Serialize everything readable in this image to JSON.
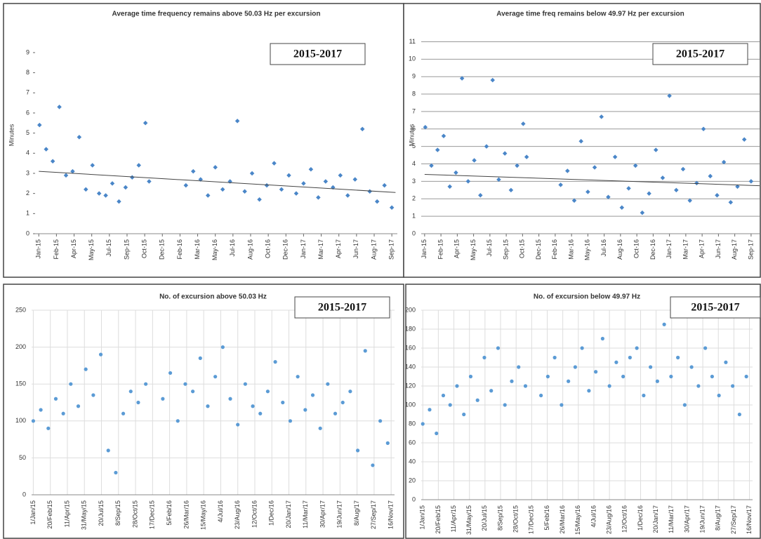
{
  "chart_data": [
    {
      "type": "scatter",
      "title": "Average time frequency remains above 50.03 Hz per excursion",
      "ylabel": "Minutes",
      "annotation": "2015-2017",
      "color": "#4a86c8",
      "marker": "diamond",
      "grid": "none",
      "x": [
        2,
        20,
        38,
        56,
        74,
        92,
        110,
        128,
        146,
        164,
        182,
        200,
        218,
        236,
        254,
        272,
        290,
        300,
        400,
        420,
        440,
        460,
        480,
        500,
        520,
        540,
        560,
        580,
        600,
        620,
        640,
        660,
        680,
        700,
        720,
        740,
        760,
        780,
        800,
        820,
        840,
        860,
        880,
        900,
        920,
        940,
        960
      ],
      "values": [
        5.4,
        4.2,
        3.6,
        6.3,
        2.9,
        3.1,
        4.8,
        2.2,
        3.4,
        2.0,
        1.9,
        2.5,
        1.6,
        2.3,
        2.8,
        3.4,
        5.5,
        2.6,
        2.4,
        3.1,
        2.7,
        1.9,
        3.3,
        2.2,
        2.6,
        5.6,
        2.1,
        3.0,
        1.7,
        2.4,
        3.5,
        2.2,
        2.9,
        2.0,
        2.5,
        3.2,
        1.8,
        2.6,
        2.3,
        2.9,
        1.9,
        2.7,
        5.2,
        2.1,
        1.6,
        2.4,
        1.3
      ],
      "trendline": {
        "x": [
          0,
          970
        ],
        "values": [
          3.1,
          2.05
        ]
      },
      "xlim": [
        -10,
        975
      ],
      "ylim": [
        0,
        9.8
      ],
      "yticks": [
        0,
        1,
        2,
        3,
        4,
        5,
        6,
        7,
        8,
        9
      ],
      "xticks": [
        {
          "value": 0,
          "label": "Jan-15"
        },
        {
          "value": 48,
          "label": "Feb-15"
        },
        {
          "value": 96,
          "label": "Apr-15"
        },
        {
          "value": 144,
          "label": "May-15"
        },
        {
          "value": 192,
          "label": "Jul-15"
        },
        {
          "value": 240,
          "label": "Sep-15"
        },
        {
          "value": 288,
          "label": "Oct-15"
        },
        {
          "value": 336,
          "label": "Dec-15"
        },
        {
          "value": 384,
          "label": "Feb-16"
        },
        {
          "value": 432,
          "label": "Mar-16"
        },
        {
          "value": 480,
          "label": "May-16"
        },
        {
          "value": 528,
          "label": "Jul-16"
        },
        {
          "value": 576,
          "label": "Aug-16"
        },
        {
          "value": 624,
          "label": "Oct-16"
        },
        {
          "value": 672,
          "label": "Dec-16"
        },
        {
          "value": 720,
          "label": "Jan-17"
        },
        {
          "value": 768,
          "label": "Mar-17"
        },
        {
          "value": 816,
          "label": "Apr-17"
        },
        {
          "value": 864,
          "label": "Jun-17"
        },
        {
          "value": 912,
          "label": "Aug-17"
        },
        {
          "value": 960,
          "label": "Sep-17"
        }
      ]
    },
    {
      "type": "scatter",
      "title": "Average time freq remains below 49.97 Hz per excursion",
      "ylabel": "Minutes",
      "annotation": "2015-2017",
      "color": "#4a86c8",
      "marker": "diamond",
      "grid": "y",
      "x": [
        2,
        20,
        38,
        56,
        74,
        92,
        110,
        128,
        146,
        164,
        182,
        200,
        218,
        236,
        254,
        272,
        290,
        300,
        400,
        420,
        440,
        460,
        480,
        500,
        520,
        540,
        560,
        580,
        600,
        620,
        640,
        660,
        680,
        700,
        720,
        740,
        760,
        780,
        800,
        820,
        840,
        860,
        880,
        900,
        920,
        940,
        960
      ],
      "values": [
        6.1,
        3.9,
        4.8,
        5.6,
        2.7,
        3.5,
        8.9,
        3.0,
        4.2,
        2.2,
        5.0,
        8.8,
        3.1,
        4.6,
        2.5,
        3.9,
        6.3,
        4.4,
        2.8,
        3.6,
        1.9,
        5.3,
        2.4,
        3.8,
        6.7,
        2.1,
        4.4,
        1.5,
        2.6,
        3.9,
        1.2,
        2.3,
        4.8,
        3.2,
        7.9,
        2.5,
        3.7,
        1.9,
        2.9,
        6.0,
        3.3,
        2.2,
        4.1,
        1.8,
        2.7,
        5.4,
        3.0
      ],
      "trendline": {
        "x": [
          0,
          985
        ],
        "values": [
          3.4,
          2.75
        ]
      },
      "xlim": [
        -10,
        985
      ],
      "ylim": [
        0,
        11.3
      ],
      "yticks": [
        0,
        1,
        2,
        3,
        4,
        5,
        6,
        7,
        8,
        9,
        10,
        11
      ],
      "xticks": [
        {
          "value": 0,
          "label": "Jan-15"
        },
        {
          "value": 48,
          "label": "Feb-15"
        },
        {
          "value": 96,
          "label": "Apr-15"
        },
        {
          "value": 144,
          "label": "May-15"
        },
        {
          "value": 192,
          "label": "Jul-15"
        },
        {
          "value": 240,
          "label": "Sep-15"
        },
        {
          "value": 288,
          "label": "Oct-15"
        },
        {
          "value": 336,
          "label": "Dec-15"
        },
        {
          "value": 384,
          "label": "Feb-16"
        },
        {
          "value": 432,
          "label": "Mar-16"
        },
        {
          "value": 480,
          "label": "May-16"
        },
        {
          "value": 528,
          "label": "Jul-16"
        },
        {
          "value": 576,
          "label": "Aug-16"
        },
        {
          "value": 624,
          "label": "Oct-16"
        },
        {
          "value": 672,
          "label": "Dec-16"
        },
        {
          "value": 720,
          "label": "Jan-17"
        },
        {
          "value": 768,
          "label": "Mar-17"
        },
        {
          "value": 816,
          "label": "Apr-17"
        },
        {
          "value": 864,
          "label": "Jun-17"
        },
        {
          "value": 912,
          "label": "Aug-17"
        },
        {
          "value": 960,
          "label": "Sep-17"
        }
      ]
    },
    {
      "type": "scatter",
      "title": "No. of excursion above 50.03 Hz",
      "annotation": "2015-2017",
      "color": "#5b9bd5",
      "marker": "circle",
      "grid": "both",
      "x": [
        0,
        22,
        44,
        66,
        88,
        110,
        132,
        154,
        176,
        198,
        220,
        242,
        264,
        286,
        308,
        330,
        380,
        402,
        424,
        446,
        468,
        490,
        512,
        534,
        556,
        578,
        600,
        622,
        644,
        666,
        688,
        710,
        732,
        754,
        776,
        798,
        820,
        842,
        864,
        886,
        908,
        930,
        952,
        974,
        996,
        1018,
        1040
      ],
      "values": [
        100,
        115,
        90,
        130,
        110,
        150,
        120,
        170,
        135,
        190,
        60,
        30,
        110,
        140,
        125,
        150,
        130,
        165,
        100,
        150,
        140,
        185,
        120,
        160,
        200,
        130,
        95,
        150,
        120,
        110,
        140,
        180,
        125,
        100,
        160,
        115,
        135,
        90,
        150,
        110,
        125,
        140,
        60,
        195,
        40,
        100,
        70
      ],
      "xlim": [
        -5,
        1060
      ],
      "ylim": [
        0,
        250
      ],
      "yticks": [
        0,
        50,
        100,
        150,
        200,
        250
      ],
      "xticks": [
        {
          "value": 0,
          "label": "1/Jan/15"
        },
        {
          "value": 50,
          "label": "20/Feb/15"
        },
        {
          "value": 100,
          "label": "11/Apr/15"
        },
        {
          "value": 150,
          "label": "31/May/15"
        },
        {
          "value": 200,
          "label": "20/Jul/15"
        },
        {
          "value": 250,
          "label": "8/Sep/15"
        },
        {
          "value": 300,
          "label": "28/Oct/15"
        },
        {
          "value": 350,
          "label": "17/Dec/15"
        },
        {
          "value": 400,
          "label": "5/Feb/16"
        },
        {
          "value": 450,
          "label": "26/Mar/16"
        },
        {
          "value": 500,
          "label": "15/May/16"
        },
        {
          "value": 550,
          "label": "4/Jul/16"
        },
        {
          "value": 600,
          "label": "23/Aug/16"
        },
        {
          "value": 650,
          "label": "12/Oct/16"
        },
        {
          "value": 700,
          "label": "1/Dec/16"
        },
        {
          "value": 750,
          "label": "20/Jan/17"
        },
        {
          "value": 800,
          "label": "11/Mar/17"
        },
        {
          "value": 850,
          "label": "30/Apr/17"
        },
        {
          "value": 900,
          "label": "19/Jun/17"
        },
        {
          "value": 950,
          "label": "8/Aug/17"
        },
        {
          "value": 1000,
          "label": "27/Sep/17"
        },
        {
          "value": 1050,
          "label": "16/Nov/17"
        }
      ]
    },
    {
      "type": "scatter",
      "title": "No. of excursion below 49.97 Hz",
      "annotation": "2015-2017",
      "color": "#5b9bd5",
      "marker": "circle",
      "grid": "both",
      "x": [
        0,
        22,
        44,
        66,
        88,
        110,
        132,
        154,
        176,
        198,
        220,
        242,
        264,
        286,
        308,
        330,
        380,
        402,
        424,
        446,
        468,
        490,
        512,
        534,
        556,
        578,
        600,
        622,
        644,
        666,
        688,
        710,
        732,
        754,
        776,
        798,
        820,
        842,
        864,
        886,
        908,
        930,
        952,
        974,
        996,
        1018,
        1040
      ],
      "values": [
        80,
        95,
        70,
        110,
        100,
        120,
        90,
        130,
        105,
        150,
        115,
        160,
        100,
        125,
        140,
        120,
        110,
        130,
        150,
        100,
        125,
        140,
        160,
        115,
        135,
        170,
        120,
        145,
        130,
        150,
        160,
        110,
        140,
        125,
        185,
        130,
        150,
        100,
        140,
        120,
        160,
        130,
        110,
        145,
        120,
        90,
        130
      ],
      "xlim": [
        -5,
        1060
      ],
      "ylim": [
        0,
        200
      ],
      "yticks": [
        0,
        20,
        40,
        60,
        80,
        100,
        120,
        140,
        160,
        180,
        200
      ],
      "xticks": [
        {
          "value": 0,
          "label": "1/Jan/15"
        },
        {
          "value": 50,
          "label": "20/Feb/15"
        },
        {
          "value": 100,
          "label": "11/Apr/15"
        },
        {
          "value": 150,
          "label": "31/May/15"
        },
        {
          "value": 200,
          "label": "20/Jul/15"
        },
        {
          "value": 250,
          "label": "8/Sep/15"
        },
        {
          "value": 300,
          "label": "28/Oct/15"
        },
        {
          "value": 350,
          "label": "17/Dec/15"
        },
        {
          "value": 400,
          "label": "5/Feb/16"
        },
        {
          "value": 450,
          "label": "26/Mar/16"
        },
        {
          "value": 500,
          "label": "15/May/16"
        },
        {
          "value": 550,
          "label": "4/Jul/16"
        },
        {
          "value": 600,
          "label": "23/Aug/16"
        },
        {
          "value": 650,
          "label": "12/Oct/16"
        },
        {
          "value": 700,
          "label": "1/Dec/16"
        },
        {
          "value": 750,
          "label": "20/Jan/17"
        },
        {
          "value": 800,
          "label": "11/Mar/17"
        },
        {
          "value": 850,
          "label": "30/Apr/17"
        },
        {
          "value": 900,
          "label": "19/Jun/17"
        },
        {
          "value": 950,
          "label": "8/Aug/17"
        },
        {
          "value": 1000,
          "label": "27/Sep/17"
        },
        {
          "value": 1050,
          "label": "16/Nov/17"
        }
      ]
    }
  ]
}
